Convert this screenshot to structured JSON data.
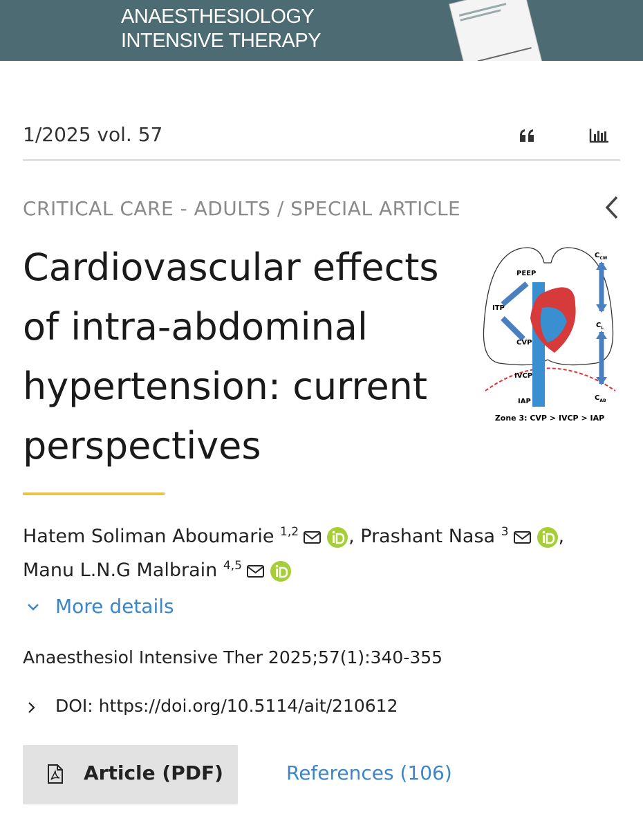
{
  "header": {
    "logo_line1": "ANAESTHESIOLOGY",
    "logo_line2": "INTENSIVE THERAPY"
  },
  "issue": "1/2025 vol. 57",
  "section": "CRITICAL CARE - ADULTS / SPECIAL ARTICLE",
  "title": "Cardiovascular effects of intra-abdominal hypertension: current perspectives",
  "figure": {
    "labels": {
      "peep": "PEEP",
      "itp": "ITP",
      "cvp": "CVP",
      "ivcp": "IVCP",
      "iap": "IAP"
    },
    "compliance": [
      {
        "main": "C",
        "sub": "CW"
      },
      {
        "main": "C",
        "sub": "L"
      },
      {
        "main": "C",
        "sub": "AB"
      }
    ],
    "caption": "Zone 3: CVP > IVCP > IAP"
  },
  "authors": [
    {
      "name": "Hatem Soliman Aboumarie",
      "affiliations": "1,2",
      "separator": ","
    },
    {
      "name": "Prashant Nasa",
      "affiliations": "3",
      "separator": ","
    },
    {
      "name": "Manu L.N.G Malbrain",
      "affiliations": "4,5"
    }
  ],
  "more_details": "More details",
  "citation": "Anaesthesiol Intensive Ther 2025;57(1):340-355",
  "doi": "DOI: https://doi.org/10.5114/ait/210612",
  "buttons": {
    "pdf": "Article (PDF)",
    "references": "References (106)"
  }
}
